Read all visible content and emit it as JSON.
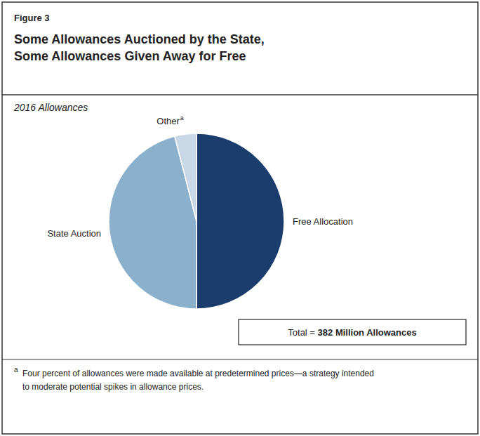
{
  "chart_data": {
    "type": "pie",
    "title": "Some Allowances Auctioned by the State,\nSome Allowances Given Away for Free",
    "subtitle": "2016 Allowances",
    "categories": [
      "Free Allocation",
      "State Auction",
      "Other"
    ],
    "values": [
      50,
      46,
      4
    ],
    "colors": [
      "#1b3d6e",
      "#8ab0cc",
      "#c8d8e6"
    ],
    "annotations": [
      {
        "text": "Figure 3"
      },
      {
        "text": "a"
      },
      {
        "text": "Total = "
      },
      {
        "text": "382 Million Allowances"
      },
      {
        "text": "a"
      },
      {
        "text": "Four percent of allowances were made available at predetermined prices—a strategy intended\nto moderate potential spikes in allowance prices."
      }
    ]
  }
}
